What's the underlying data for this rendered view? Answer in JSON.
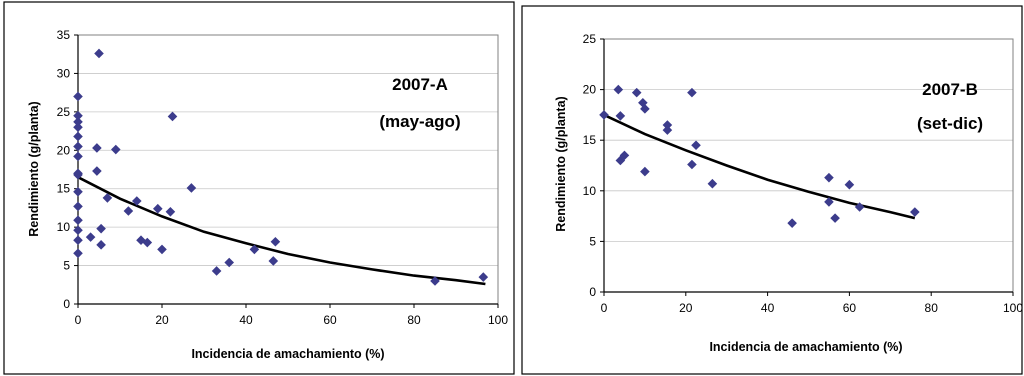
{
  "chart_data": [
    {
      "type": "scatter",
      "annotation_line1": "2007-A",
      "annotation_line2": "(may-ago)",
      "xlabel": "Incidencia de amachamiento (%)",
      "ylabel": "Rendimiento (g/planta)",
      "xlim": [
        0,
        100
      ],
      "ylim": [
        0,
        35
      ],
      "xticks": [
        "0",
        "20",
        "40",
        "60",
        "80",
        "100"
      ],
      "yticks": [
        "0",
        "5",
        "10",
        "15",
        "20",
        "25",
        "30",
        "35"
      ],
      "marker_color": "#3c3c8c",
      "line_color": "#000000",
      "trendline": {
        "type": "exponential",
        "x": [
          0,
          10,
          20,
          30,
          40,
          50,
          60,
          70,
          80,
          90,
          97
        ],
        "y": [
          16.5,
          13.7,
          11.4,
          9.4,
          7.9,
          6.5,
          5.4,
          4.5,
          3.7,
          3.1,
          2.6
        ]
      },
      "points": [
        {
          "x": 0,
          "y": 27.0
        },
        {
          "x": 0,
          "y": 24.5
        },
        {
          "x": 0,
          "y": 23.7
        },
        {
          "x": 0,
          "y": 23.0
        },
        {
          "x": 0,
          "y": 21.8
        },
        {
          "x": 0,
          "y": 20.5
        },
        {
          "x": 0,
          "y": 19.2
        },
        {
          "x": 0,
          "y": 17.0
        },
        {
          "x": 0,
          "y": 16.8
        },
        {
          "x": 0,
          "y": 14.6
        },
        {
          "x": 0,
          "y": 12.7
        },
        {
          "x": 0,
          "y": 10.9
        },
        {
          "x": 0,
          "y": 9.6
        },
        {
          "x": 0,
          "y": 8.3
        },
        {
          "x": 0,
          "y": 6.6
        },
        {
          "x": 3,
          "y": 8.7
        },
        {
          "x": 4.5,
          "y": 20.3
        },
        {
          "x": 4.5,
          "y": 17.3
        },
        {
          "x": 5,
          "y": 32.6
        },
        {
          "x": 5.5,
          "y": 7.7
        },
        {
          "x": 5.5,
          "y": 9.8
        },
        {
          "x": 7,
          "y": 13.8
        },
        {
          "x": 9,
          "y": 20.1
        },
        {
          "x": 12,
          "y": 12.1
        },
        {
          "x": 14,
          "y": 13.4
        },
        {
          "x": 15,
          "y": 8.3
        },
        {
          "x": 16.5,
          "y": 8.0
        },
        {
          "x": 19,
          "y": 12.4
        },
        {
          "x": 20,
          "y": 7.1
        },
        {
          "x": 22,
          "y": 12.0
        },
        {
          "x": 22.5,
          "y": 24.4
        },
        {
          "x": 27,
          "y": 15.1
        },
        {
          "x": 33,
          "y": 4.3
        },
        {
          "x": 36,
          "y": 5.4
        },
        {
          "x": 42,
          "y": 7.1
        },
        {
          "x": 46.5,
          "y": 5.6
        },
        {
          "x": 47,
          "y": 8.1
        },
        {
          "x": 85,
          "y": 3.0
        },
        {
          "x": 96.5,
          "y": 3.5
        }
      ]
    },
    {
      "type": "scatter",
      "annotation_line1": "2007-B",
      "annotation_line2": "(set-dic)",
      "xlabel": "Incidencia de amachamiento (%)",
      "ylabel": "Rendimiento (g/planta)",
      "xlim": [
        0,
        100
      ],
      "ylim": [
        0,
        25
      ],
      "xticks": [
        "0",
        "20",
        "40",
        "60",
        "80",
        "100"
      ],
      "yticks": [
        "0",
        "5",
        "10",
        "15",
        "20",
        "25"
      ],
      "marker_color": "#3c3c8c",
      "line_color": "#000000",
      "trendline": {
        "type": "exponential",
        "x": [
          0,
          10,
          20,
          30,
          40,
          50,
          60,
          70,
          76
        ],
        "y": [
          17.5,
          15.6,
          14.0,
          12.5,
          11.1,
          9.9,
          8.8,
          7.9,
          7.3
        ]
      },
      "points": [
        {
          "x": 0,
          "y": 17.5
        },
        {
          "x": 3.5,
          "y": 20.0
        },
        {
          "x": 4,
          "y": 17.4
        },
        {
          "x": 4,
          "y": 13.0
        },
        {
          "x": 5,
          "y": 13.5
        },
        {
          "x": 8,
          "y": 19.7
        },
        {
          "x": 9.5,
          "y": 18.7
        },
        {
          "x": 10,
          "y": 18.1
        },
        {
          "x": 10,
          "y": 11.9
        },
        {
          "x": 15.5,
          "y": 16.5
        },
        {
          "x": 15.5,
          "y": 16.0
        },
        {
          "x": 21.5,
          "y": 19.7
        },
        {
          "x": 21.5,
          "y": 12.6
        },
        {
          "x": 22.5,
          "y": 14.5
        },
        {
          "x": 26.5,
          "y": 10.7
        },
        {
          "x": 46,
          "y": 6.8
        },
        {
          "x": 55,
          "y": 11.3
        },
        {
          "x": 55,
          "y": 8.9
        },
        {
          "x": 56.5,
          "y": 7.3
        },
        {
          "x": 60,
          "y": 10.6
        },
        {
          "x": 62.5,
          "y": 8.4
        },
        {
          "x": 76,
          "y": 7.9
        }
      ]
    }
  ]
}
